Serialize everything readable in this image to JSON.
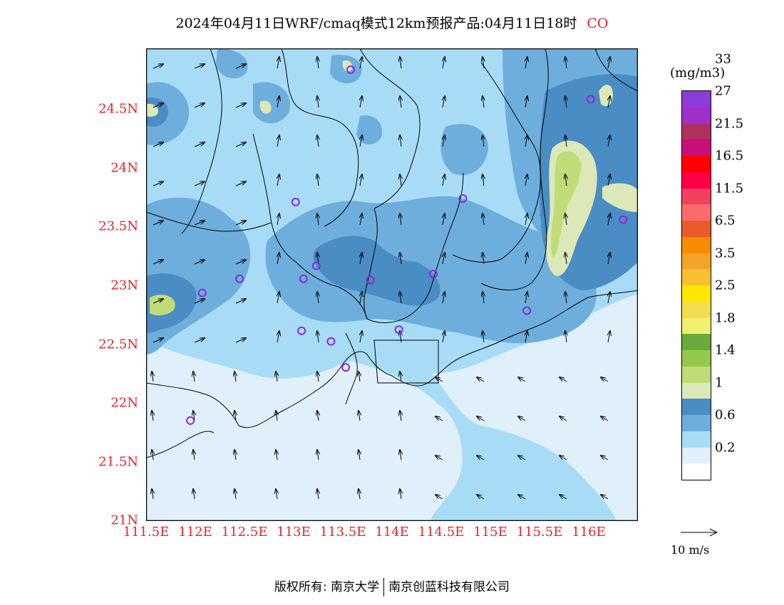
{
  "title": "2024年04月11日WRF/cmaq模式12km预报产品:04月11日18时",
  "species": "CO",
  "unit": "(mg/m3)",
  "lat_labels": [
    "24.5N",
    "24N",
    "23.5N",
    "23N",
    "22.5N",
    "22N",
    "21.5N",
    "21N"
  ],
  "lon_labels": [
    "111.5E",
    "112E",
    "112.5E",
    "113E",
    "113.5E",
    "114E",
    "114.5E",
    "115E",
    "115.5E",
    "116E"
  ],
  "colorbar": {
    "colors": [
      "#ffffff",
      "#e0f0fa",
      "#a8dcf6",
      "#6eaedc",
      "#4a8cc4",
      "#dde8b8",
      "#c0dc78",
      "#94c84c",
      "#6aaa3c",
      "#f0f070",
      "#f4dc50",
      "#ffe800",
      "#f8c030",
      "#f4a428",
      "#f88c00",
      "#ec5a2a",
      "#fa6c6c",
      "#f44060",
      "#ff0044",
      "#ff0000",
      "#c8107a",
      "#b03060",
      "#a030c8",
      "#8c3cd8"
    ],
    "labels": [
      "0.2",
      "0.6",
      "1",
      "1.4",
      "1.8",
      "2.5",
      "3.5",
      "6.5",
      "11.5",
      "16.5",
      "21.5",
      "27",
      "33"
    ]
  },
  "ref_vector": "10 m/s",
  "footer": {
    "left": "版权所有: 南京大学",
    "right": "南京创蓝科技有限公司"
  },
  "stations": [
    {
      "lon": 113.58,
      "lat": 24.82
    },
    {
      "lon": 116.02,
      "lat": 24.57
    },
    {
      "lon": 113.02,
      "lat": 23.7
    },
    {
      "lon": 114.72,
      "lat": 23.73
    },
    {
      "lon": 116.35,
      "lat": 23.55
    },
    {
      "lon": 112.45,
      "lat": 23.05
    },
    {
      "lon": 113.23,
      "lat": 23.16
    },
    {
      "lon": 113.1,
      "lat": 23.05
    },
    {
      "lon": 113.78,
      "lat": 23.04
    },
    {
      "lon": 114.42,
      "lat": 23.09
    },
    {
      "lon": 112.07,
      "lat": 22.93
    },
    {
      "lon": 115.37,
      "lat": 22.78
    },
    {
      "lon": 113.08,
      "lat": 22.61
    },
    {
      "lon": 113.38,
      "lat": 22.52
    },
    {
      "lon": 114.07,
      "lat": 22.62
    },
    {
      "lon": 113.53,
      "lat": 22.3
    },
    {
      "lon": 111.95,
      "lat": 21.85
    }
  ]
}
